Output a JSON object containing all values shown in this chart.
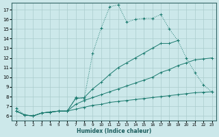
{
  "xlabel": "Humidex (Indice chaleur)",
  "bg_color": "#cce8ea",
  "grid_color": "#aacccc",
  "line_color": "#1a7a6e",
  "ylim": [
    5.5,
    17.7
  ],
  "xlim": [
    -0.5,
    23.5
  ],
  "yticks": [
    6,
    7,
    8,
    9,
    10,
    11,
    12,
    13,
    14,
    15,
    16,
    17
  ],
  "xticks": [
    0,
    1,
    2,
    3,
    4,
    5,
    6,
    7,
    8,
    9,
    10,
    11,
    12,
    13,
    14,
    15,
    16,
    17,
    18,
    19,
    20,
    21,
    22,
    23
  ],
  "line1_x": [
    0,
    1,
    2,
    3,
    4,
    5,
    6,
    7,
    8,
    9,
    10,
    11,
    12,
    13,
    14,
    15,
    16,
    17,
    18,
    19,
    20,
    21,
    22,
    23
  ],
  "line1_y": [
    6.8,
    6.1,
    6.0,
    6.3,
    6.4,
    6.5,
    6.5,
    7.9,
    7.8,
    12.5,
    15.1,
    17.3,
    17.5,
    15.7,
    16.0,
    16.1,
    16.1,
    16.5,
    15.0,
    13.8,
    12.0,
    10.5,
    9.2,
    8.5
  ],
  "line2_x": [
    0,
    1,
    2,
    3,
    4,
    5,
    6,
    7,
    8,
    9,
    10,
    11,
    12,
    13,
    14,
    15,
    16,
    17,
    18,
    19
  ],
  "line2_y": [
    6.5,
    6.1,
    6.0,
    6.3,
    6.4,
    6.5,
    6.5,
    7.8,
    7.9,
    8.8,
    9.5,
    10.3,
    11.0,
    11.5,
    12.0,
    12.5,
    13.0,
    13.5,
    13.5,
    13.8
  ],
  "line3_x": [
    0,
    1,
    2,
    3,
    4,
    5,
    6,
    7,
    8,
    9,
    10,
    11,
    12,
    13,
    14,
    15,
    16,
    17,
    18,
    19,
    20,
    21,
    22,
    23
  ],
  "line3_y": [
    6.5,
    6.1,
    6.0,
    6.3,
    6.4,
    6.5,
    6.5,
    7.2,
    7.6,
    7.9,
    8.2,
    8.5,
    8.8,
    9.1,
    9.4,
    9.7,
    10.0,
    10.5,
    10.8,
    11.2,
    11.5,
    11.8,
    11.9,
    12.0
  ],
  "line4_x": [
    0,
    1,
    2,
    3,
    4,
    5,
    6,
    7,
    8,
    9,
    10,
    11,
    12,
    13,
    14,
    15,
    16,
    17,
    18,
    19,
    20,
    21,
    22,
    23
  ],
  "line4_y": [
    6.5,
    6.1,
    6.0,
    6.3,
    6.4,
    6.5,
    6.5,
    6.7,
    6.9,
    7.1,
    7.2,
    7.4,
    7.5,
    7.6,
    7.7,
    7.8,
    7.9,
    8.0,
    8.1,
    8.2,
    8.3,
    8.4,
    8.45,
    8.5
  ]
}
